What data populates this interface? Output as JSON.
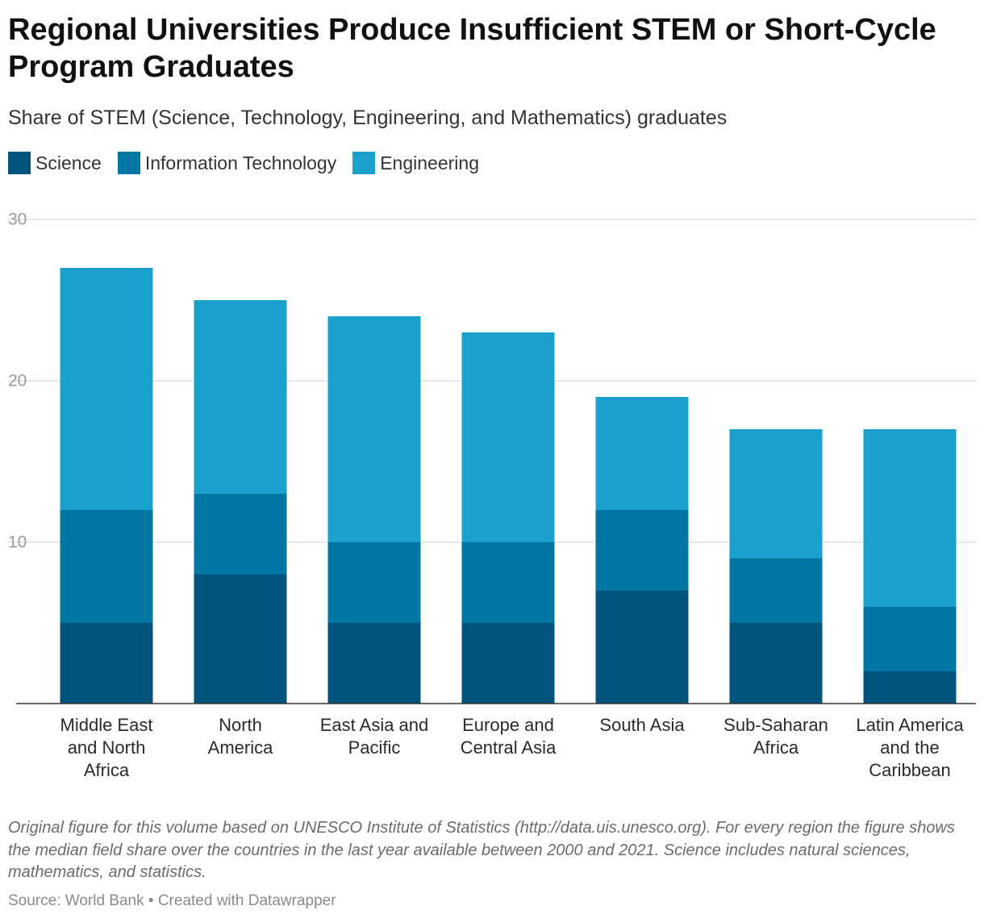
{
  "header": {
    "title": "Regional Universities Produce Insufficient STEM or Short-Cycle Program Graduates",
    "subtitle": "Share of STEM (Science, Technology, Engineering, and Mathematics) graduates"
  },
  "legend": [
    {
      "label": "Science",
      "color": "#00537a"
    },
    {
      "label": "Information Technology",
      "color": "#0077a3"
    },
    {
      "label": "Engineering",
      "color": "#1aa0cd"
    }
  ],
  "chart_data": {
    "type": "bar",
    "stacked": true,
    "categories": [
      [
        "Middle East",
        "and North",
        "Africa"
      ],
      [
        "North",
        "America"
      ],
      [
        "East Asia and",
        "Pacific"
      ],
      [
        "Europe and",
        "Central Asia"
      ],
      [
        "South Asia"
      ],
      [
        "Sub-Saharan",
        "Africa"
      ],
      [
        "Latin America",
        "and the",
        "Caribbean"
      ]
    ],
    "series": [
      {
        "name": "Science",
        "color": "#00537a",
        "values": [
          5,
          8,
          5,
          5,
          7,
          5,
          2
        ]
      },
      {
        "name": "Information Technology",
        "color": "#0077a3",
        "values": [
          7,
          5,
          5,
          5,
          5,
          4,
          4
        ]
      },
      {
        "name": "Engineering",
        "color": "#1aa0cd",
        "values": [
          15,
          12,
          14,
          13,
          7,
          8,
          11
        ]
      }
    ],
    "yticks": [
      10,
      20,
      30
    ],
    "ylim": [
      0,
      30
    ],
    "grid": true
  },
  "notes": "Original figure for this volume based on UNESCO Institute of Statistics (http://data.uis.unesco.org). For every region the figure shows the median field share over the countries in the last year available between 2000 and 2021. Science includes natural sciences, mathematics, and statistics.",
  "footer": "Source: World Bank • Created with Datawrapper"
}
